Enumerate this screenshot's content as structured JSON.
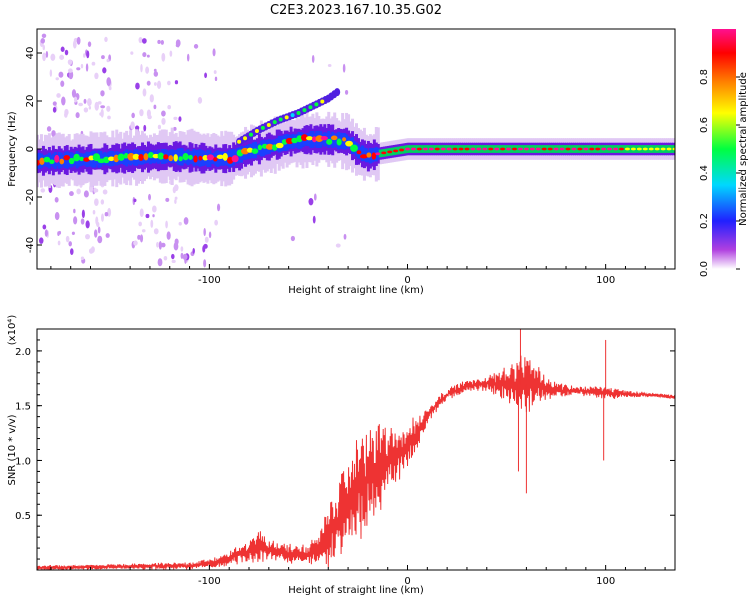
{
  "title": "C2E3.2023.167.10.35.G02",
  "chart_data": [
    {
      "type": "heatmap",
      "name": "spectrogram",
      "xlabel": "Height of straight line (km)",
      "ylabel": "Frequency (Hz)",
      "xlim": [
        -187,
        135
      ],
      "ylim": [
        -50,
        50
      ],
      "xticks": [
        -100,
        0,
        100
      ],
      "xtick_labels": [
        "-100",
        "0",
        "100"
      ],
      "yticks": [
        -40,
        -20,
        0,
        20,
        40
      ],
      "ytick_labels": [
        "-40",
        "-20",
        "0",
        "20",
        "40"
      ],
      "ridge": {
        "x": [
          -187,
          -150,
          -120,
          -100,
          -90,
          -80,
          -70,
          -60,
          -50,
          -40,
          -30,
          -25,
          -20,
          -15,
          0,
          50,
          100,
          135
        ],
        "y": [
          -5,
          -4,
          -3,
          -4,
          -4,
          -1,
          1,
          3,
          4,
          4,
          3,
          -1,
          -3,
          -2,
          0,
          0,
          0,
          0
        ]
      },
      "upper_branch": {
        "x": [
          -85,
          -75,
          -65,
          -55,
          -45,
          -40,
          -35
        ],
        "y": [
          3,
          8,
          12,
          15,
          19,
          21,
          24
        ]
      }
    },
    {
      "type": "colorbar",
      "name": "amplitude-colorbar",
      "label": "Normalized spectral amplitude",
      "range": [
        0,
        1
      ],
      "ticks": [
        0.0,
        0.2,
        0.4,
        0.6,
        0.8
      ],
      "tick_labels": [
        "0.0",
        "0.2",
        "0.4",
        "0.6",
        "0.8"
      ],
      "colors": [
        "#ffffff",
        "#b040e0",
        "#2020ff",
        "#00d8ff",
        "#00ff40",
        "#ffff00",
        "#ff8000",
        "#ff0000",
        "#ff1090"
      ]
    },
    {
      "type": "line",
      "name": "snr",
      "xlabel": "Height of straight line (km)",
      "ylabel": "SNR (10 * v/v)",
      "ylabel_scale": "(x10⁴)",
      "xlim": [
        -187,
        135
      ],
      "ylim": [
        0,
        2.2
      ],
      "xticks": [
        -100,
        0,
        100
      ],
      "xtick_labels": [
        "-100",
        "0",
        "100"
      ],
      "yticks": [
        0.5,
        1.0,
        1.5,
        2.0
      ],
      "ytick_labels": [
        "0.5",
        "1.0",
        "1.5",
        "2.0"
      ],
      "color": "#ee3333",
      "envelope": {
        "x": [
          -187,
          -150,
          -110,
          -100,
          -90,
          -80,
          -75,
          -70,
          -60,
          -50,
          -45,
          -40,
          -35,
          -30,
          -25,
          -20,
          -15,
          -10,
          -5,
          0,
          5,
          10,
          15,
          20,
          25,
          30,
          40,
          50,
          60,
          70,
          80,
          90,
          100,
          110,
          120,
          135
        ],
        "mean": [
          0.02,
          0.03,
          0.04,
          0.06,
          0.1,
          0.18,
          0.22,
          0.18,
          0.15,
          0.14,
          0.2,
          0.3,
          0.45,
          0.6,
          0.75,
          0.85,
          0.92,
          1.0,
          1.05,
          1.12,
          1.25,
          1.4,
          1.52,
          1.6,
          1.65,
          1.68,
          1.7,
          1.71,
          1.69,
          1.66,
          1.64,
          1.63,
          1.62,
          1.61,
          1.6,
          1.58
        ],
        "spread": [
          0.02,
          0.02,
          0.03,
          0.04,
          0.06,
          0.1,
          0.14,
          0.1,
          0.08,
          0.08,
          0.15,
          0.25,
          0.35,
          0.4,
          0.45,
          0.45,
          0.4,
          0.3,
          0.25,
          0.2,
          0.15,
          0.08,
          0.06,
          0.05,
          0.05,
          0.05,
          0.06,
          0.15,
          0.25,
          0.1,
          0.05,
          0.04,
          0.06,
          0.03,
          0.02,
          0.02
        ]
      },
      "spikes": [
        {
          "x": 57,
          "y": 2.2
        },
        {
          "x": 60,
          "y": 0.7
        },
        {
          "x": 100,
          "y": 2.1
        },
        {
          "x": 99,
          "y": 1.0
        },
        {
          "x": 56,
          "y": 0.9
        }
      ]
    }
  ]
}
